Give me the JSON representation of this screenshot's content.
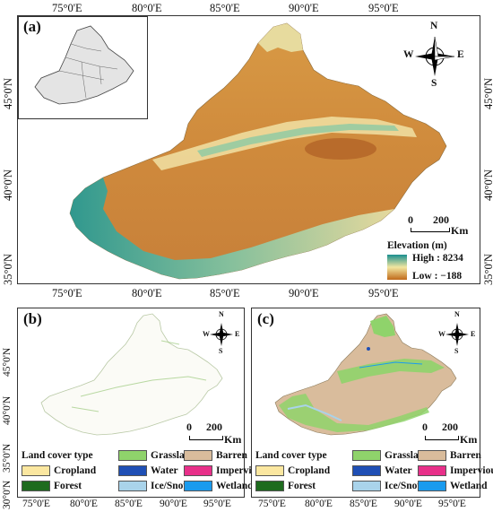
{
  "panels": {
    "a": {
      "label": "(a)",
      "lon_ticks": [
        "75°0'E",
        "80°0'E",
        "85°0'E",
        "90°0'E",
        "95°0'E"
      ],
      "lat_ticks": [
        "45°0'N",
        "40°0'N",
        "35°0'N"
      ],
      "compass": {
        "n": "N",
        "s": "S",
        "e": "E",
        "w": "W"
      },
      "scalebar": {
        "zero": "0",
        "value": "200",
        "unit": "Km"
      },
      "elevation_legend": {
        "title": "Elevation (m)",
        "high": "High : 8234",
        "low": "Low : −188",
        "colors": [
          "#1a8f8f",
          "#f2e6a0",
          "#c06a1a"
        ]
      }
    },
    "b": {
      "label": "(b)",
      "lon_ticks": [
        "75°0'E",
        "80°0'E",
        "85°0'E",
        "90°0'E",
        "95°0'E"
      ],
      "lat_ticks": [
        "45°0'N",
        "40°0'N",
        "35°0'N",
        "30°0'N"
      ],
      "compass": {
        "n": "N",
        "s": "S",
        "e": "E",
        "w": "W"
      },
      "scalebar": {
        "zero": "0",
        "value": "200",
        "unit": "Km"
      }
    },
    "c": {
      "label": "(c)",
      "compass": {
        "n": "N",
        "s": "S",
        "e": "E",
        "w": "W"
      },
      "scalebar": {
        "zero": "0",
        "value": "200",
        "unit": "Km"
      }
    }
  },
  "land_cover_legend": {
    "title": "Land cover type",
    "items": [
      {
        "name": "Grassland",
        "color": "#8fd36b"
      },
      {
        "name": "Barren",
        "color": "#d9bc9c"
      },
      {
        "name": "Cropland",
        "color": "#fbe7a0"
      },
      {
        "name": "Water",
        "color": "#1f4fb5"
      },
      {
        "name": "Impervious",
        "color": "#e8308a"
      },
      {
        "name": "Forest",
        "color": "#1e6b1e"
      },
      {
        "name": "Ice/Snow",
        "color": "#a9d3ea"
      },
      {
        "name": "Wetland",
        "color": "#1a9bee"
      }
    ]
  }
}
